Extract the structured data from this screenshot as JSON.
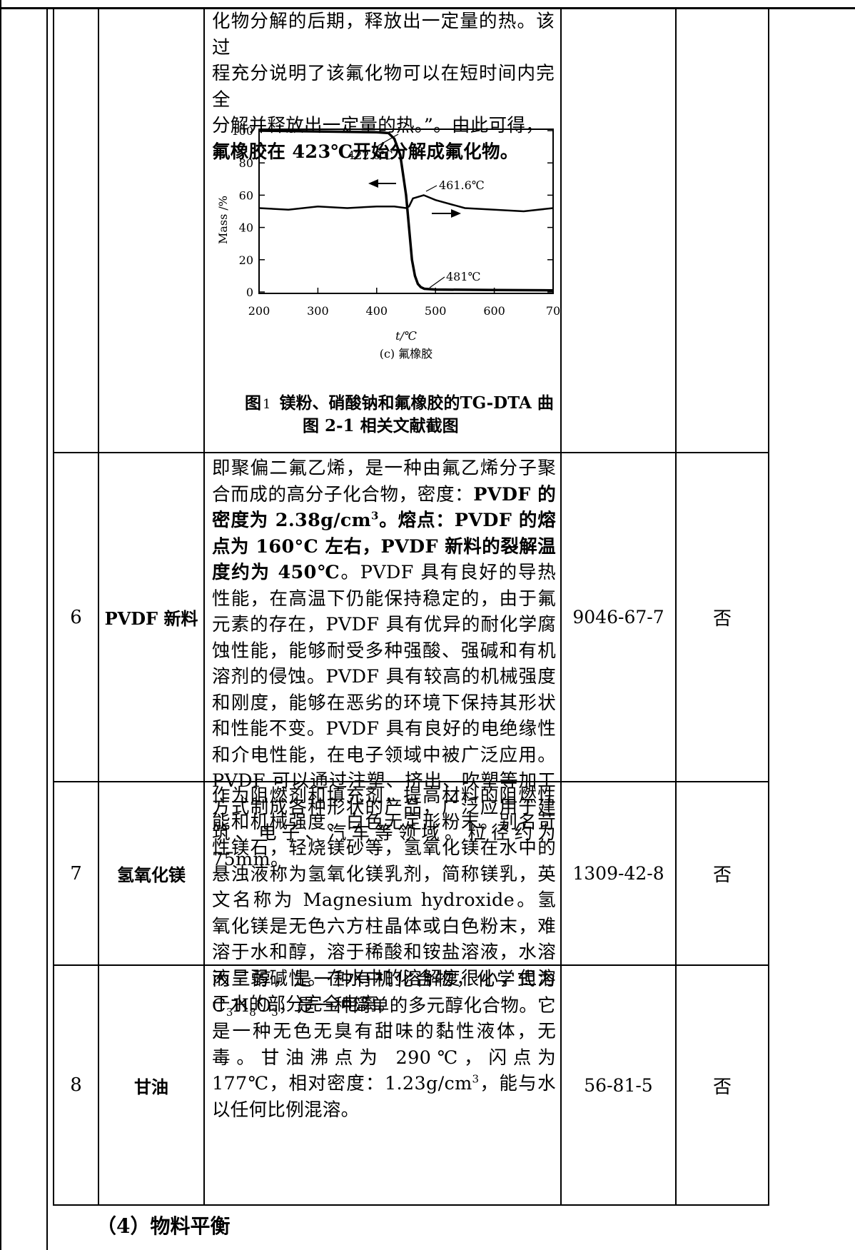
{
  "row5": {
    "desc_lines": [
      "化物分解的后期，释放出一定量的热。该过",
      "程充分说明了该氟化物可以在短时间内完全",
      "分解并释放出一定量的热。”。由此可得，"
    ],
    "desc_bold": "氟橡胶在 423℃开始分解成氟化物。"
  },
  "figure": {
    "y_axis_label": "Mass /%",
    "x_axis_label": "t/℃",
    "subcaption": "(c) 氟橡胶",
    "annot_422": "422.6℃",
    "annot_461": "461.6℃",
    "annot_481": "481℃",
    "x_ticks": [
      "200",
      "300",
      "400",
      "500",
      "600",
      "70"
    ],
    "y_ticks": [
      "100",
      "80",
      "60",
      "40",
      "20",
      "0"
    ],
    "inner_caption_prefix": "图",
    "inner_caption_num": "1",
    "inner_caption_text": "镁粉、硝酸钠和氟橡胶的TG-DTA 曲",
    "caption": "图 2-1  相关文献截图"
  },
  "chart_data": {
    "type": "line",
    "xlabel": "t/℃",
    "ylabel": "Mass /%",
    "xlim": [
      200,
      700
    ],
    "ylim": [
      0,
      100
    ],
    "series": [
      {
        "x": [
          200,
          300,
          400,
          420,
          430,
          440,
          450,
          455,
          460,
          465,
          470,
          475,
          481,
          500,
          600,
          700
        ],
        "y": [
          100,
          99.5,
          99,
          98.5,
          95,
          85,
          60,
          40,
          20,
          10,
          5,
          3,
          2,
          1.5,
          1.2,
          1
        ]
      },
      {
        "x": [
          200,
          250,
          300,
          350,
          400,
          430,
          450,
          455,
          461.6,
          480,
          500,
          550,
          600,
          650,
          700
        ],
        "y": [
          52,
          51,
          53,
          52,
          53,
          53,
          52,
          53,
          58,
          60,
          57,
          52,
          51,
          50,
          52
        ]
      }
    ],
    "annotations": [
      "422.6℃",
      "461.6℃",
      "481℃"
    ]
  },
  "rows": [
    {
      "no": "6",
      "name": "PVDF 新料",
      "cas": "9046-67-7",
      "flag": "否",
      "intro": "即聚偏二氟乙烯，是一种由氟乙烯分子聚合而成的高分子化合物，密度：",
      "bold1": "PVDF 的密度为 2.38g/cm",
      "sup1": "3",
      "bold2": "。熔点：PVDF 的熔点为 160°C 左右，PVDF 新料的裂解温度约为 450℃",
      "rest": "。PVDF 具有良好的导热性能，在高温下仍能保持稳定的，由于氟元素的存在，PVDF 具有优异的耐化学腐蚀性能，能够耐受多种强酸、强碱和有机溶剂的侵蚀。PVDF 具有较高的机械强度和刚度，能够在恶劣的环境下保持其形状和性能不变。PVDF 具有良好的电绝缘性和介电性能，在电子领域中被广泛应用。PVDF 可以通过注塑、挤出、吹塑等加工方式制成各种形状的产品，广泛应用于建筑、电子、汽车等领域。粒径约为 75mm。"
    },
    {
      "no": "7",
      "name": "氢氧化镁",
      "cas": "1309-42-8",
      "flag": "否",
      "text": "作为阻燃剂和填充剂，提高材料的阻燃性能和机械强度。白色无定形粉末。别名苛性镁石，轻烧镁砂等，氢氧化镁在水中的悬浊液称为氢氧化镁乳剂，简称镁乳，英文名称为 Magnesium hydroxide。氢氧化镁是无色六方柱晶体或白色粉末，难溶于水和醇，溶于稀酸和铵盐溶液，水溶液呈弱碱性。在水中的溶解度很小，但溶于水的部分完全电离。"
    },
    {
      "no": "8",
      "name": "甘油",
      "cas": "56-81-5",
      "flag": "否",
      "t1": "丙三醇，是一种有机化合物，化学式为 C",
      "s1": "3",
      "t2": "H",
      "s2": "8",
      "t3": "O",
      "s3": "3",
      "t4": "，是一种简单的多元醇化合物。它是一种无色无臭有甜味的黏性液体，无毒。甘油沸点为 290℃，闪点为 177℃，相对密度：1.23g/cm",
      "sup": "3",
      "t5": "，能与水以任何比例混溶。"
    }
  ],
  "section_heading": "（4）物料平衡"
}
